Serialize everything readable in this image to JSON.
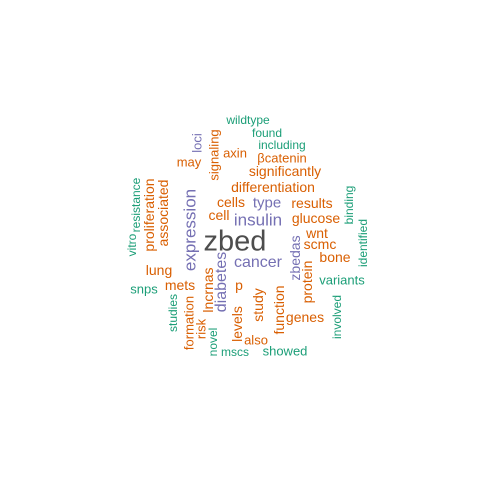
{
  "palette": {
    "teal": "#1b9e77",
    "orange": "#d95f02",
    "purple": "#7570b3",
    "gray": "#4d4d4d"
  },
  "words": [
    {
      "text": "zbed",
      "color": "gray",
      "orient": "h"
    },
    {
      "text": "expression",
      "color": "purple",
      "orient": "v"
    },
    {
      "text": "insulin",
      "color": "purple",
      "orient": "h"
    },
    {
      "text": "cancer",
      "color": "purple",
      "orient": "h"
    },
    {
      "text": "diabetes",
      "color": "purple",
      "orient": "v"
    },
    {
      "text": "type",
      "color": "purple",
      "orient": "h"
    },
    {
      "text": "wildtype",
      "color": "teal",
      "orient": "h"
    },
    {
      "text": "found",
      "color": "teal",
      "orient": "h"
    },
    {
      "text": "including",
      "color": "teal",
      "orient": "h"
    },
    {
      "text": "loci",
      "color": "purple",
      "orient": "v"
    },
    {
      "text": "signaling",
      "color": "orange",
      "orient": "v"
    },
    {
      "text": "axin",
      "color": "orange",
      "orient": "h"
    },
    {
      "text": "βcatenin",
      "color": "orange",
      "orient": "h"
    },
    {
      "text": "may",
      "color": "orange",
      "orient": "h"
    },
    {
      "text": "significantly",
      "color": "orange",
      "orient": "h"
    },
    {
      "text": "differentiation",
      "color": "orange",
      "orient": "h"
    },
    {
      "text": "cells",
      "color": "orange",
      "orient": "h"
    },
    {
      "text": "results",
      "color": "orange",
      "orient": "h"
    },
    {
      "text": "cell",
      "color": "orange",
      "orient": "h"
    },
    {
      "text": "glucose",
      "color": "orange",
      "orient": "h"
    },
    {
      "text": "wnt",
      "color": "orange",
      "orient": "h"
    },
    {
      "text": "zbedas",
      "color": "purple",
      "orient": "v"
    },
    {
      "text": "scmc",
      "color": "orange",
      "orient": "h"
    },
    {
      "text": "bone",
      "color": "orange",
      "orient": "h"
    },
    {
      "text": "protein",
      "color": "orange",
      "orient": "v"
    },
    {
      "text": "resistance",
      "color": "teal",
      "orient": "v"
    },
    {
      "text": "proliferation",
      "color": "orange",
      "orient": "v"
    },
    {
      "text": "associated",
      "color": "orange",
      "orient": "v"
    },
    {
      "text": "vitro",
      "color": "teal",
      "orient": "v"
    },
    {
      "text": "binding",
      "color": "teal",
      "orient": "v"
    },
    {
      "text": "identified",
      "color": "teal",
      "orient": "v"
    },
    {
      "text": "lung",
      "color": "orange",
      "orient": "h"
    },
    {
      "text": "snps",
      "color": "teal",
      "orient": "h"
    },
    {
      "text": "mets",
      "color": "orange",
      "orient": "h"
    },
    {
      "text": "lncrnas",
      "color": "orange",
      "orient": "v"
    },
    {
      "text": "p",
      "color": "orange",
      "orient": "h"
    },
    {
      "text": "variants",
      "color": "teal",
      "orient": "h"
    },
    {
      "text": "study",
      "color": "orange",
      "orient": "v"
    },
    {
      "text": "function",
      "color": "orange",
      "orient": "v"
    },
    {
      "text": "studies",
      "color": "teal",
      "orient": "v"
    },
    {
      "text": "formation",
      "color": "orange",
      "orient": "v"
    },
    {
      "text": "risk",
      "color": "orange",
      "orient": "v"
    },
    {
      "text": "levels",
      "color": "orange",
      "orient": "v"
    },
    {
      "text": "genes",
      "color": "orange",
      "orient": "h"
    },
    {
      "text": "involved",
      "color": "teal",
      "orient": "v"
    },
    {
      "text": "novel",
      "color": "teal",
      "orient": "v"
    },
    {
      "text": "also",
      "color": "orange",
      "orient": "h"
    },
    {
      "text": "mscs",
      "color": "teal",
      "orient": "h"
    },
    {
      "text": "showed",
      "color": "teal",
      "orient": "h"
    }
  ]
}
